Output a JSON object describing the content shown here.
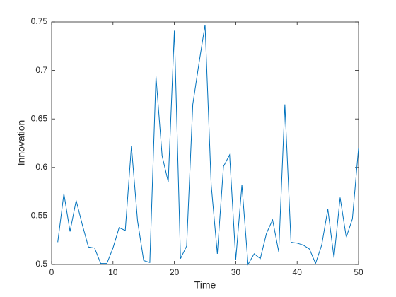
{
  "chart_data": {
    "type": "line",
    "xlabel": "Time",
    "ylabel": "Innovation",
    "x": [
      1,
      2,
      3,
      4,
      5,
      6,
      7,
      8,
      9,
      10,
      11,
      12,
      13,
      14,
      15,
      16,
      17,
      18,
      19,
      20,
      21,
      22,
      23,
      24,
      25,
      26,
      27,
      28,
      29,
      30,
      31,
      32,
      33,
      34,
      35,
      36,
      37,
      38,
      39,
      40,
      41,
      42,
      43,
      44,
      45,
      46,
      47,
      48,
      49,
      50
    ],
    "series": [
      {
        "color": "#0072bd",
        "values": [
          0.523,
          0.573,
          0.534,
          0.566,
          0.541,
          0.518,
          0.517,
          0.501,
          0.501,
          0.517,
          0.538,
          0.535,
          0.622,
          0.545,
          0.504,
          0.502,
          0.694,
          0.612,
          0.585,
          0.741,
          0.506,
          0.519,
          0.665,
          0.707,
          0.747,
          0.582,
          0.511,
          0.601,
          0.613,
          0.505,
          0.582,
          0.5,
          0.511,
          0.506,
          0.532,
          0.546,
          0.513,
          0.665,
          0.523,
          0.522,
          0.52,
          0.516,
          0.501,
          0.52,
          0.557,
          0.507,
          0.569,
          0.528,
          0.547,
          0.62
        ]
      }
    ],
    "xlim": [
      0,
      50
    ],
    "xticks": [
      0,
      10,
      20,
      30,
      40,
      50
    ],
    "ylim": [
      0.5,
      0.75
    ],
    "yticks": [
      0.5,
      0.55,
      0.6,
      0.65,
      0.7,
      0.75
    ]
  }
}
